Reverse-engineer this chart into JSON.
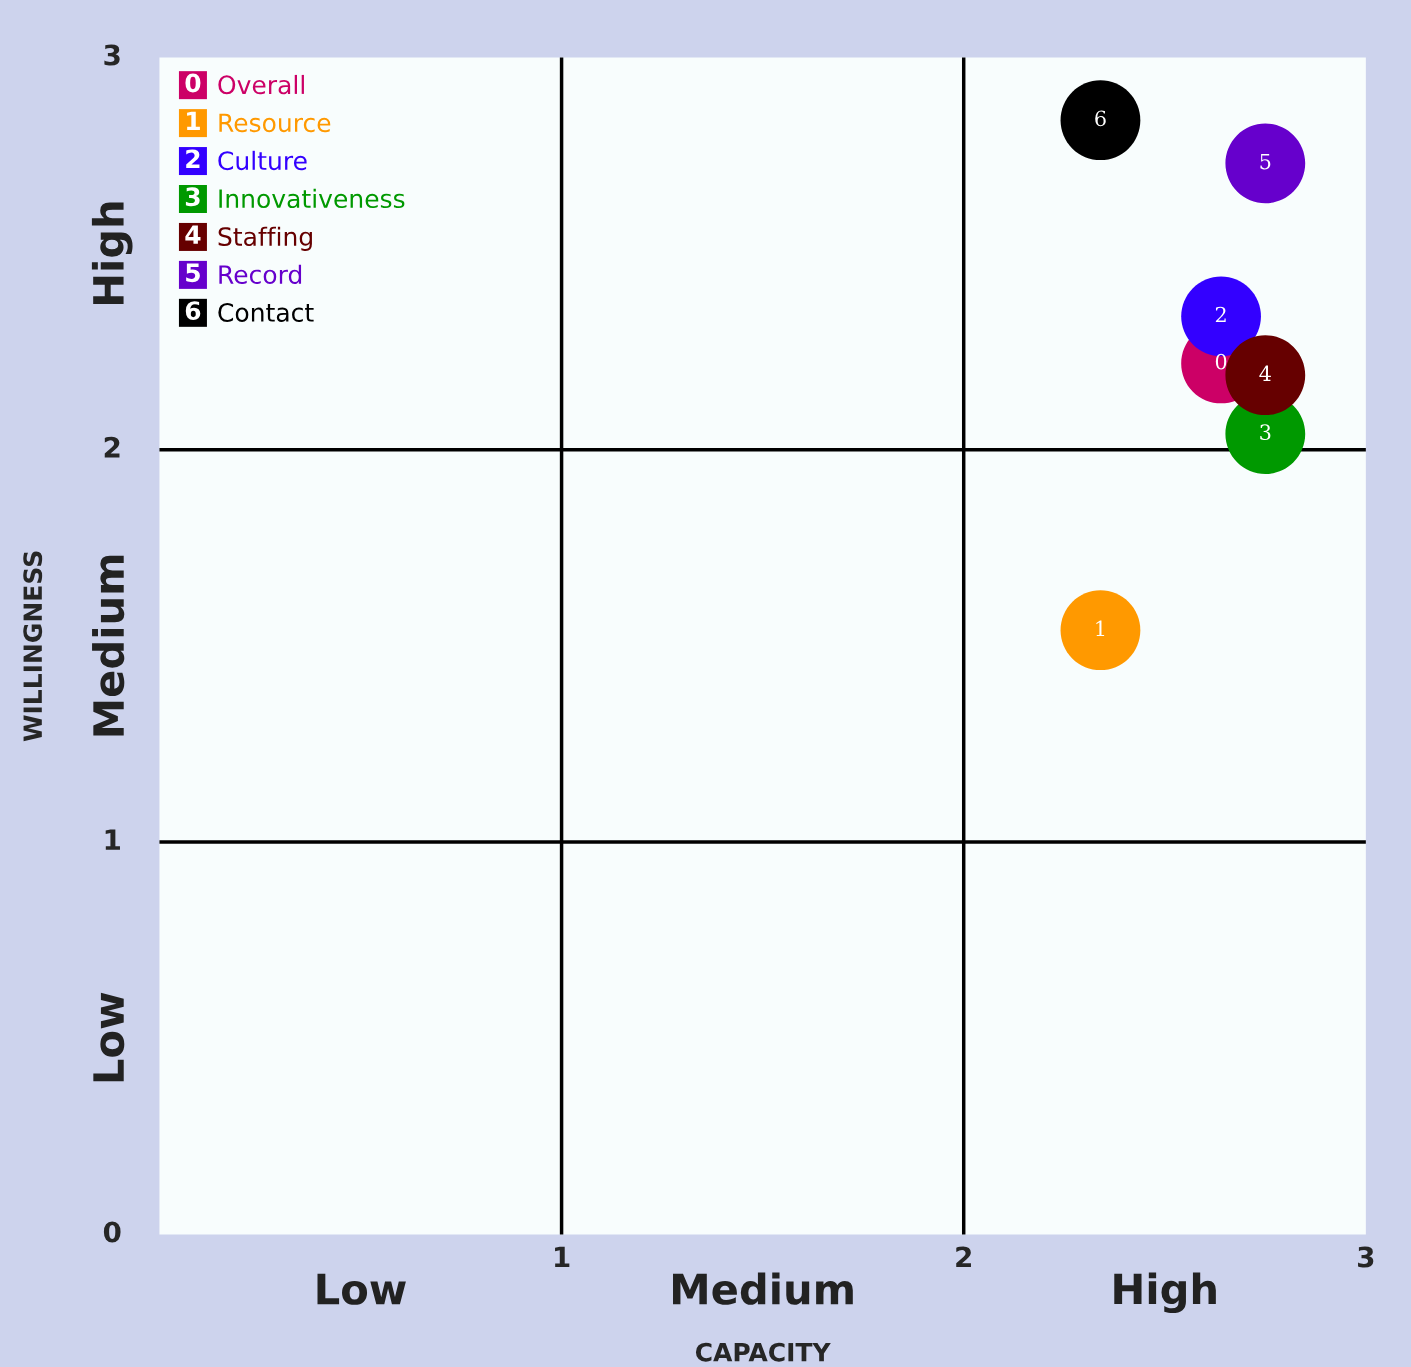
{
  "chart_data": {
    "type": "scatter",
    "xlabel": "CAPACITY",
    "ylabel": "WILLINGNESS",
    "xlim": [
      0,
      3
    ],
    "ylim": [
      0,
      3
    ],
    "xticks": [
      {
        "value": 0,
        "label": null
      },
      1,
      2,
      3
    ],
    "yticks": [
      0,
      1,
      2,
      3
    ],
    "grid": true,
    "legend": "top left",
    "marker": "circle",
    "annotations": [
      {
        "text": "0",
        "x": 2.64,
        "y": 2.22
      },
      {
        "text": "1",
        "x": 2.34,
        "y": 1.54
      },
      {
        "text": "2",
        "x": 2.64,
        "y": 2.34
      },
      {
        "text": "3",
        "x": 2.75,
        "y": 2.04
      },
      {
        "text": "4",
        "x": 2.75,
        "y": 2.19
      },
      {
        "text": "5",
        "x": 2.75,
        "y": 2.73
      },
      {
        "text": "6",
        "x": 2.34,
        "y": 2.84
      },
      "Low",
      "Medium",
      "High",
      "Low",
      "Medium",
      "High"
    ],
    "series": [
      {
        "name": "Overall",
        "color": "#cc0066",
        "x": [
          2.64
        ],
        "values": [
          2.22
        ]
      },
      {
        "name": "Resource",
        "color": "#ff9900",
        "x": [
          2.34
        ],
        "values": [
          1.54
        ]
      },
      {
        "name": "Culture",
        "color": "#3300ff",
        "x": [
          2.64
        ],
        "values": [
          2.34
        ]
      },
      {
        "name": "Innovativeness",
        "color": "#009900",
        "x": [
          2.75
        ],
        "values": [
          2.04
        ]
      },
      {
        "name": "Staffing",
        "color": "#660000",
        "x": [
          2.75
        ],
        "values": [
          2.19
        ]
      },
      {
        "name": "Record",
        "color": "#6600cc",
        "x": [
          2.75
        ],
        "values": [
          2.73
        ]
      },
      {
        "name": "Contact",
        "color": "#000000",
        "x": [
          2.34
        ],
        "values": [
          2.84
        ]
      }
    ]
  }
}
